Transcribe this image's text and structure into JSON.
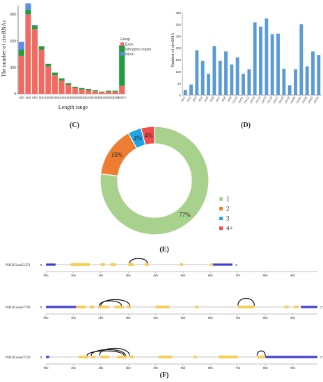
{
  "panels": {
    "c": "(C)",
    "d": "(D)",
    "e": "(E)",
    "f": "(F)"
  },
  "chart_data": [
    {
      "id": "C",
      "type": "bar",
      "stacked": true,
      "ylabel": "The number of circRNAs",
      "xlabel": "Length range",
      "ylim": [
        0,
        1000
      ],
      "yticks": [
        0,
        300,
        600,
        900
      ],
      "categories": [
        "200",
        "400",
        "600",
        "800",
        "1000",
        "1200",
        "1400",
        "1600",
        "1800",
        "2000",
        "2200",
        "2400",
        "2600",
        "2800",
        "3000",
        "3000+"
      ],
      "legend": {
        "title": "Group",
        "position": "right"
      },
      "series": [
        {
          "name": "Exon",
          "color": "#f06a61",
          "values": [
            430,
            900,
            730,
            500,
            310,
            210,
            150,
            100,
            65,
            50,
            40,
            30,
            20,
            25,
            25,
            90
          ]
        },
        {
          "name": "Intergenic region",
          "color": "#1e9e3e",
          "values": [
            70,
            55,
            40,
            40,
            30,
            30,
            25,
            20,
            15,
            15,
            15,
            10,
            5,
            10,
            10,
            460
          ]
        },
        {
          "name": "Intron",
          "color": "#5b8df0",
          "values": [
            90,
            70,
            10,
            0,
            0,
            0,
            0,
            0,
            0,
            0,
            0,
            0,
            0,
            0,
            0,
            0
          ]
        }
      ]
    },
    {
      "id": "D",
      "type": "bar",
      "ylabel": "Number of circRNA",
      "ylim": [
        0,
        350
      ],
      "yticks": [
        0,
        50,
        100,
        150,
        200,
        250,
        300,
        350
      ],
      "color": "#5b9bd5",
      "categories": [
        "chr1",
        "chr2",
        "chr3",
        "chr4",
        "chr5",
        "chr6",
        "chr7",
        "chr8",
        "chr9",
        "chr10",
        "chr11",
        "chr12",
        "chr13",
        "chr14",
        "chr15",
        "chr16",
        "chr17",
        "chr18",
        "chr19",
        "chr20",
        "chr21",
        "chr22",
        "chr23",
        "chr24"
      ],
      "values": [
        22,
        45,
        190,
        145,
        90,
        208,
        145,
        185,
        130,
        160,
        90,
        110,
        308,
        290,
        325,
        258,
        260,
        112,
        42,
        110,
        300,
        122,
        185,
        170
      ]
    },
    {
      "id": "E",
      "type": "pie",
      "donut": true,
      "legend_position": "right",
      "slices": [
        {
          "label": "1",
          "value": 77,
          "text": "77%",
          "color": "#a9d18e"
        },
        {
          "label": "2",
          "value": 15,
          "text": "15%",
          "color": "#ed7d31"
        },
        {
          "label": "3",
          "value": 4,
          "text": "4%",
          "color": "#1fa5e6"
        },
        {
          "label": "4+",
          "value": 4,
          "text": "4%",
          "color": "#f24d4d"
        }
      ]
    }
  ],
  "gene_tracks": {
    "ticks": [
      "0kb",
      "1kb",
      "2kb",
      "3kb",
      "4kb",
      "5kb",
      "6kb",
      "7kb",
      "8kb",
      "9kb"
    ],
    "strand_left": "5'",
    "strand_right": "3'",
    "genes": [
      {
        "name": "PHO2Gene51251",
        "max_kb": 6.8,
        "utr": [
          [
            0,
            0.35
          ],
          [
            6.0,
            6.8
          ]
        ],
        "exons": [
          [
            0.9,
            1.6
          ],
          [
            2.0,
            2.15
          ],
          [
            2.35,
            2.55
          ],
          [
            3.0,
            3.2
          ],
          [
            3.6,
            3.75
          ],
          [
            4.9,
            5.0
          ],
          [
            6.0,
            6.1
          ]
        ],
        "arcs": [
          [
            3.05,
            3.7
          ]
        ]
      },
      {
        "name": "PHO2Gene37796",
        "max_kb": 9.9,
        "utr": [
          [
            0,
            1.1
          ],
          [
            9.3,
            9.9
          ]
        ],
        "exons": [
          [
            1.1,
            1.45
          ],
          [
            1.6,
            1.75
          ],
          [
            1.9,
            2.3
          ],
          [
            2.5,
            2.85
          ],
          [
            2.95,
            3.1
          ],
          [
            4.0,
            4.5
          ],
          [
            5.45,
            5.55
          ],
          [
            7.0,
            7.6
          ],
          [
            8.7,
            8.85
          ],
          [
            9.05,
            9.2
          ]
        ],
        "arcs": [
          [
            1.95,
            2.75
          ],
          [
            2.0,
            3.05
          ],
          [
            7.0,
            7.6
          ]
        ]
      },
      {
        "name": "PHO2Gene27259",
        "max_kb": 9.9,
        "utr": [
          [
            0,
            0.12
          ],
          [
            8.0,
            9.9
          ]
        ],
        "exons": [
          [
            1.2,
            1.55
          ],
          [
            1.65,
            1.8
          ],
          [
            2.0,
            2.3
          ],
          [
            2.6,
            2.95
          ],
          [
            3.05,
            3.2
          ],
          [
            4.1,
            4.6
          ],
          [
            5.4,
            5.5
          ],
          [
            6.3,
            7.0
          ],
          [
            7.7,
            8.0
          ]
        ],
        "arcs": [
          [
            1.5,
            2.85
          ],
          [
            1.65,
            2.9
          ],
          [
            1.95,
            3.05
          ],
          [
            7.7,
            8.0
          ]
        ]
      }
    ]
  }
}
